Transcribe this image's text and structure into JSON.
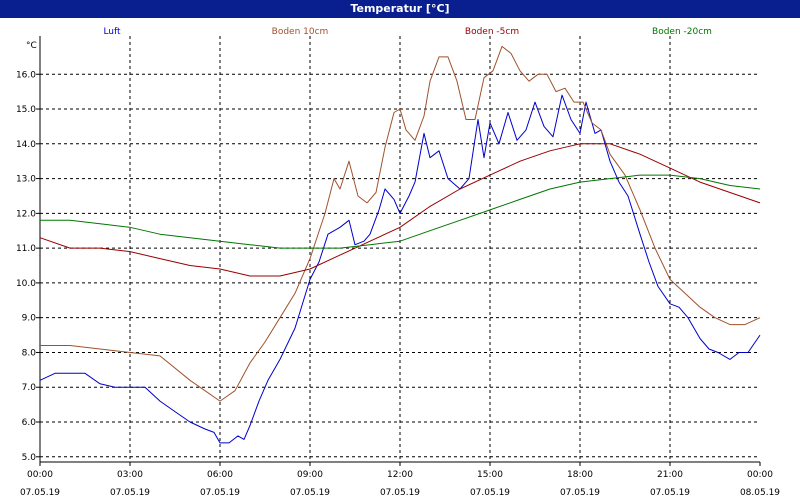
{
  "window": {
    "title": "Temperatur [°C]"
  },
  "chart_data": {
    "type": "line",
    "ylabel": "°C",
    "ylim": [
      4.85,
      17.1
    ],
    "yticks": [
      5.0,
      6.0,
      7.0,
      8.0,
      9.0,
      10.0,
      11.0,
      12.0,
      13.0,
      14.0,
      15.0,
      16.0
    ],
    "xlim": [
      0,
      24
    ],
    "xticks": [
      {
        "x": 0,
        "time": "00:00",
        "date": "07.05.19"
      },
      {
        "x": 3,
        "time": "03:00",
        "date": "07.05.19"
      },
      {
        "x": 6,
        "time": "06:00",
        "date": "07.05.19"
      },
      {
        "x": 9,
        "time": "09:00",
        "date": "07.05.19"
      },
      {
        "x": 12,
        "time": "12:00",
        "date": "07.05.19"
      },
      {
        "x": 15,
        "time": "15:00",
        "date": "07.05.19"
      },
      {
        "x": 18,
        "time": "18:00",
        "date": "07.05.19"
      },
      {
        "x": 21,
        "time": "21:00",
        "date": "07.05.19"
      },
      {
        "x": 24,
        "time": "00:00",
        "date": "08.05.19"
      }
    ],
    "grid": true,
    "legend_position": "top",
    "series": [
      {
        "name": "Luft",
        "color": "#0000cc",
        "points": [
          [
            0,
            7.2
          ],
          [
            0.5,
            7.4
          ],
          [
            1,
            7.4
          ],
          [
            1.5,
            7.4
          ],
          [
            2,
            7.1
          ],
          [
            2.5,
            7.0
          ],
          [
            3,
            7.0
          ],
          [
            3.5,
            7.0
          ],
          [
            4,
            6.6
          ],
          [
            4.5,
            6.3
          ],
          [
            5,
            6.0
          ],
          [
            5.5,
            5.8
          ],
          [
            5.8,
            5.7
          ],
          [
            6.0,
            5.4
          ],
          [
            6.3,
            5.4
          ],
          [
            6.6,
            5.6
          ],
          [
            6.8,
            5.5
          ],
          [
            7.0,
            5.9
          ],
          [
            7.3,
            6.6
          ],
          [
            7.6,
            7.2
          ],
          [
            8.0,
            7.8
          ],
          [
            8.5,
            8.7
          ],
          [
            9.0,
            10.1
          ],
          [
            9.3,
            10.6
          ],
          [
            9.6,
            11.4
          ],
          [
            10.0,
            11.6
          ],
          [
            10.3,
            11.8
          ],
          [
            10.5,
            11.1
          ],
          [
            10.8,
            11.2
          ],
          [
            11.0,
            11.4
          ],
          [
            11.3,
            12.1
          ],
          [
            11.5,
            12.7
          ],
          [
            11.8,
            12.4
          ],
          [
            12.0,
            12.0
          ],
          [
            12.3,
            12.5
          ],
          [
            12.5,
            12.9
          ],
          [
            12.8,
            14.3
          ],
          [
            13.0,
            13.6
          ],
          [
            13.3,
            13.8
          ],
          [
            13.6,
            13.0
          ],
          [
            14.0,
            12.7
          ],
          [
            14.3,
            13.0
          ],
          [
            14.6,
            14.7
          ],
          [
            14.8,
            13.6
          ],
          [
            15.0,
            14.6
          ],
          [
            15.3,
            14.0
          ],
          [
            15.6,
            14.9
          ],
          [
            15.9,
            14.1
          ],
          [
            16.2,
            14.4
          ],
          [
            16.5,
            15.2
          ],
          [
            16.8,
            14.5
          ],
          [
            17.1,
            14.2
          ],
          [
            17.4,
            15.4
          ],
          [
            17.7,
            14.7
          ],
          [
            18.0,
            14.3
          ],
          [
            18.2,
            15.2
          ],
          [
            18.5,
            14.3
          ],
          [
            18.7,
            14.4
          ],
          [
            19.0,
            13.5
          ],
          [
            19.3,
            12.9
          ],
          [
            19.6,
            12.5
          ],
          [
            20.0,
            11.4
          ],
          [
            20.3,
            10.6
          ],
          [
            20.6,
            9.9
          ],
          [
            21.0,
            9.4
          ],
          [
            21.3,
            9.3
          ],
          [
            21.6,
            9.0
          ],
          [
            22.0,
            8.4
          ],
          [
            22.3,
            8.1
          ],
          [
            22.6,
            8.0
          ],
          [
            23.0,
            7.8
          ],
          [
            23.3,
            8.0
          ],
          [
            23.6,
            8.0
          ],
          [
            24.0,
            8.5
          ]
        ]
      },
      {
        "name": "Boden 10cm",
        "color": "#a0522d",
        "points": [
          [
            0,
            8.2
          ],
          [
            1,
            8.2
          ],
          [
            2,
            8.1
          ],
          [
            3,
            8.0
          ],
          [
            4,
            7.9
          ],
          [
            5,
            7.2
          ],
          [
            5.5,
            6.9
          ],
          [
            6.0,
            6.6
          ],
          [
            6.5,
            6.9
          ],
          [
            7.0,
            7.7
          ],
          [
            7.5,
            8.3
          ],
          [
            8.0,
            9.0
          ],
          [
            8.5,
            9.7
          ],
          [
            9.0,
            10.7
          ],
          [
            9.5,
            12.0
          ],
          [
            9.8,
            13.0
          ],
          [
            10.0,
            12.7
          ],
          [
            10.3,
            13.5
          ],
          [
            10.6,
            12.5
          ],
          [
            10.9,
            12.3
          ],
          [
            11.2,
            12.6
          ],
          [
            11.5,
            13.9
          ],
          [
            11.8,
            14.9
          ],
          [
            12.0,
            15.0
          ],
          [
            12.2,
            14.4
          ],
          [
            12.5,
            14.1
          ],
          [
            12.8,
            14.8
          ],
          [
            13.0,
            15.8
          ],
          [
            13.3,
            16.5
          ],
          [
            13.6,
            16.5
          ],
          [
            13.9,
            15.8
          ],
          [
            14.2,
            14.7
          ],
          [
            14.5,
            14.7
          ],
          [
            14.8,
            15.9
          ],
          [
            15.1,
            16.1
          ],
          [
            15.4,
            16.8
          ],
          [
            15.7,
            16.6
          ],
          [
            16.0,
            16.1
          ],
          [
            16.3,
            15.8
          ],
          [
            16.6,
            16.0
          ],
          [
            16.9,
            16.0
          ],
          [
            17.2,
            15.5
          ],
          [
            17.5,
            15.6
          ],
          [
            17.8,
            15.2
          ],
          [
            18.1,
            15.2
          ],
          [
            18.4,
            14.6
          ],
          [
            18.7,
            14.4
          ],
          [
            19.0,
            13.7
          ],
          [
            19.5,
            13.1
          ],
          [
            20.0,
            12.1
          ],
          [
            20.5,
            11.0
          ],
          [
            21.0,
            10.1
          ],
          [
            21.5,
            9.7
          ],
          [
            22.0,
            9.3
          ],
          [
            22.5,
            9.0
          ],
          [
            23.0,
            8.8
          ],
          [
            23.5,
            8.8
          ],
          [
            24.0,
            9.0
          ]
        ]
      },
      {
        "name": "Boden -5cm",
        "color": "#990000",
        "points": [
          [
            0,
            11.3
          ],
          [
            1,
            11.0
          ],
          [
            2,
            11.0
          ],
          [
            3,
            10.9
          ],
          [
            4,
            10.7
          ],
          [
            5,
            10.5
          ],
          [
            6,
            10.4
          ],
          [
            7,
            10.2
          ],
          [
            8,
            10.2
          ],
          [
            9,
            10.4
          ],
          [
            10,
            10.8
          ],
          [
            11,
            11.2
          ],
          [
            12,
            11.6
          ],
          [
            13,
            12.2
          ],
          [
            14,
            12.7
          ],
          [
            15,
            13.1
          ],
          [
            16,
            13.5
          ],
          [
            17,
            13.8
          ],
          [
            18,
            14.0
          ],
          [
            19,
            14.0
          ],
          [
            20,
            13.7
          ],
          [
            21,
            13.3
          ],
          [
            22,
            12.9
          ],
          [
            23,
            12.6
          ],
          [
            24,
            12.3
          ]
        ]
      },
      {
        "name": "Boden -20cm",
        "color": "#007700",
        "points": [
          [
            0,
            11.8
          ],
          [
            1,
            11.8
          ],
          [
            2,
            11.7
          ],
          [
            3,
            11.6
          ],
          [
            4,
            11.4
          ],
          [
            5,
            11.3
          ],
          [
            6,
            11.2
          ],
          [
            7,
            11.1
          ],
          [
            8,
            11.0
          ],
          [
            9,
            11.0
          ],
          [
            10,
            11.0
          ],
          [
            11,
            11.1
          ],
          [
            12,
            11.2
          ],
          [
            13,
            11.5
          ],
          [
            14,
            11.8
          ],
          [
            15,
            12.1
          ],
          [
            16,
            12.4
          ],
          [
            17,
            12.7
          ],
          [
            18,
            12.9
          ],
          [
            19,
            13.0
          ],
          [
            20,
            13.1
          ],
          [
            21,
            13.1
          ],
          [
            22,
            13.0
          ],
          [
            23,
            12.8
          ],
          [
            24,
            12.7
          ]
        ]
      }
    ]
  }
}
